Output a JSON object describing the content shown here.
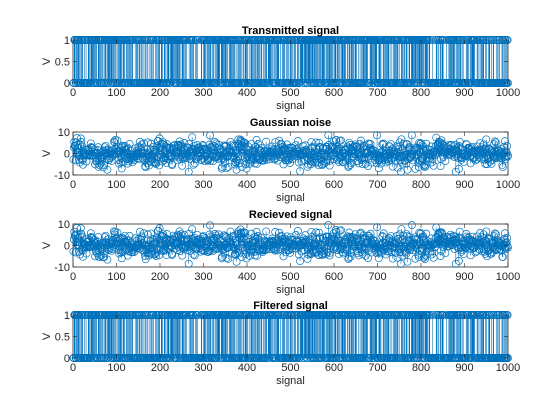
{
  "chart_data": [
    {
      "type": "stem",
      "title": "Transmitted signal",
      "xlabel": "signal",
      "ylabel": "V",
      "xlim": [
        0,
        1000
      ],
      "ylim": [
        0,
        1
      ],
      "xticks": [
        "0",
        "100",
        "200",
        "300",
        "400",
        "500",
        "600",
        "700",
        "800",
        "900",
        "1000"
      ],
      "yticks": [
        "0",
        "0.5",
        "1"
      ],
      "n_points": 1000,
      "levels": [
        0,
        1
      ],
      "description_of_values": "random binary sequence of 0 and 1, one sample per index 1..1000"
    },
    {
      "type": "stem",
      "title": "Gaussian noise",
      "xlabel": "signal",
      "ylabel": "V",
      "xlim": [
        0,
        1000
      ],
      "ylim": [
        -10,
        10
      ],
      "xticks": [
        "0",
        "100",
        "200",
        "300",
        "400",
        "500",
        "600",
        "700",
        "800",
        "900",
        "1000"
      ],
      "yticks": [
        "-10",
        "0",
        "10"
      ],
      "n_points": 1000,
      "mean": 0,
      "std": 3
    },
    {
      "type": "stem",
      "title": "Recieved signal",
      "xlabel": "signal",
      "ylabel": "V",
      "xlim": [
        0,
        1000
      ],
      "ylim": [
        -10,
        10
      ],
      "xticks": [
        "0",
        "100",
        "200",
        "300",
        "400",
        "500",
        "600",
        "700",
        "800",
        "900",
        "1000"
      ],
      "yticks": [
        "-10",
        "0",
        "10"
      ],
      "n_points": 1000
    },
    {
      "type": "stem",
      "title": "Filtered signal",
      "xlabel": "signal",
      "ylabel": "V",
      "xlim": [
        0,
        1000
      ],
      "ylim": [
        0,
        1
      ],
      "xticks": [
        "0",
        "100",
        "200",
        "300",
        "400",
        "500",
        "600",
        "700",
        "800",
        "900",
        "1000"
      ],
      "yticks": [
        "0",
        "0.5",
        "1"
      ],
      "n_points": 1000,
      "levels": [
        0,
        1
      ]
    }
  ],
  "colors": {
    "series": "#0072BD",
    "axis": "#262626"
  }
}
